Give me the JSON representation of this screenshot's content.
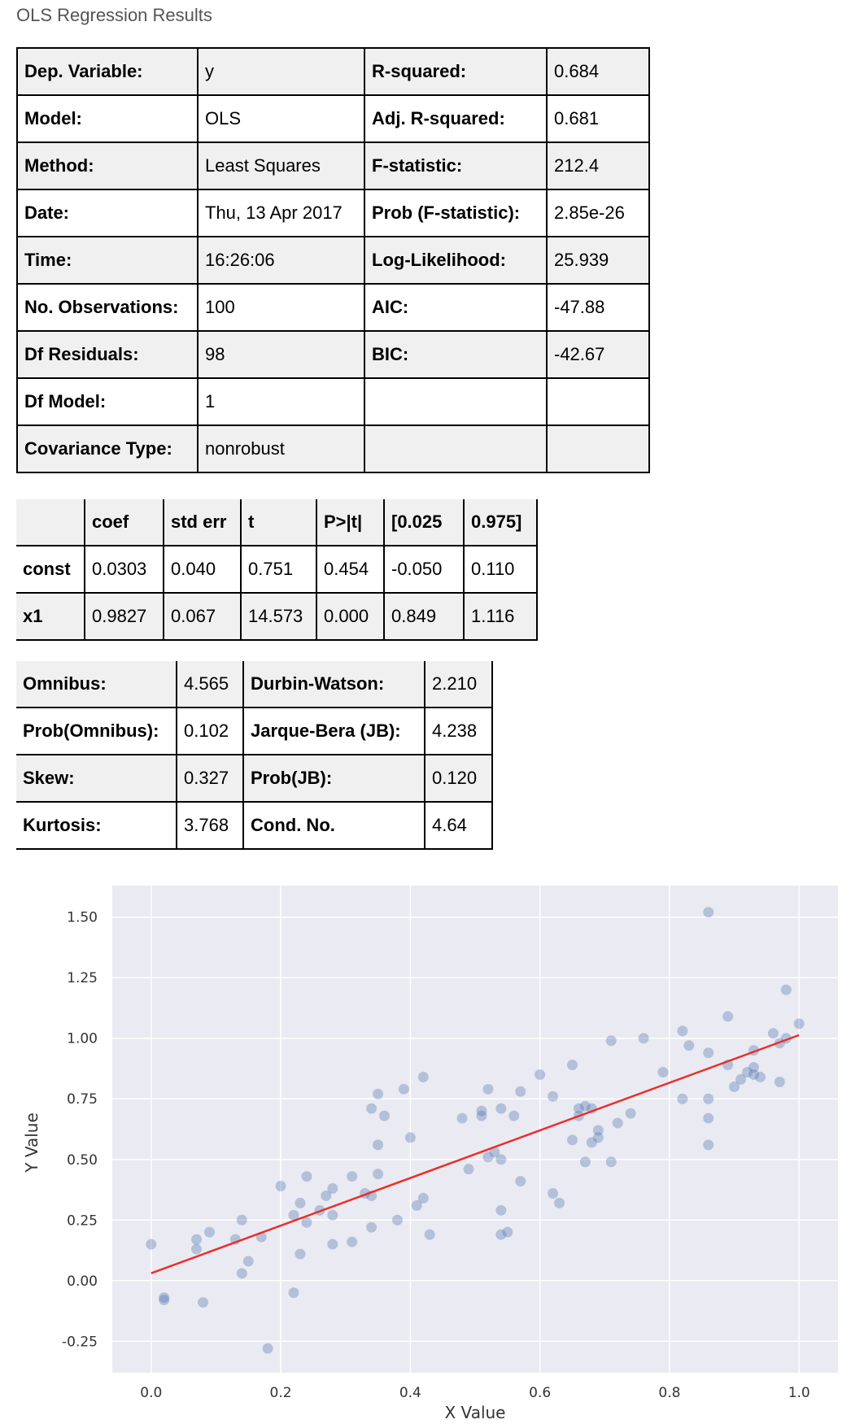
{
  "caption": "OLS Regression Results",
  "summary": {
    "rows": [
      [
        "Dep. Variable:",
        "y",
        "R-squared:",
        "0.684"
      ],
      [
        "Model:",
        "OLS",
        "Adj. R-squared:",
        "0.681"
      ],
      [
        "Method:",
        "Least Squares",
        "F-statistic:",
        "212.4"
      ],
      [
        "Date:",
        "Thu, 13 Apr 2017",
        "Prob (F-statistic):",
        "2.85e-26"
      ],
      [
        "Time:",
        "16:26:06",
        "Log-Likelihood:",
        "25.939"
      ],
      [
        "No. Observations:",
        "100",
        "AIC:",
        "-47.88"
      ],
      [
        "Df Residuals:",
        "98",
        "BIC:",
        "-42.67"
      ],
      [
        "Df Model:",
        "1",
        "",
        ""
      ],
      [
        "Covariance Type:",
        "nonrobust",
        "",
        ""
      ]
    ]
  },
  "coef_table": {
    "headers": [
      "",
      "coef",
      "std err",
      "t",
      "P>|t|",
      "[0.025",
      "0.975]"
    ],
    "rows": [
      [
        "const",
        "0.0303",
        "0.040",
        "0.751",
        "0.454",
        "-0.050",
        "0.110"
      ],
      [
        "x1",
        "0.9827",
        "0.067",
        "14.573",
        "0.000",
        "0.849",
        "1.116"
      ]
    ]
  },
  "diagnostics": {
    "rows": [
      [
        "Omnibus:",
        "4.565",
        "Durbin-Watson:",
        "2.210"
      ],
      [
        "Prob(Omnibus):",
        "0.102",
        "Jarque-Bera (JB):",
        "4.238"
      ],
      [
        "Skew:",
        "0.327",
        "Prob(JB):",
        "0.120"
      ],
      [
        "Kurtosis:",
        "3.768",
        "Cond. No.",
        "4.64"
      ]
    ]
  },
  "chart_data": {
    "type": "scatter",
    "title": "",
    "xlabel": "X Value",
    "ylabel": "Y Value",
    "xlim": [
      -0.06,
      1.06
    ],
    "ylim": [
      -0.38,
      1.63
    ],
    "xticks": [
      "0.0",
      "0.2",
      "0.4",
      "0.6",
      "0.8",
      "1.0"
    ],
    "yticks": [
      "-0.25",
      "0.00",
      "0.25",
      "0.50",
      "0.75",
      "1.00",
      "1.25",
      "1.50"
    ],
    "grid": true,
    "point_color": "#4c72b0",
    "line_color": "#e8302a",
    "points": [
      [
        0.0,
        0.15
      ],
      [
        0.02,
        -0.07
      ],
      [
        0.02,
        -0.08
      ],
      [
        0.07,
        0.13
      ],
      [
        0.07,
        0.17
      ],
      [
        0.08,
        -0.09
      ],
      [
        0.09,
        0.2
      ],
      [
        0.13,
        0.17
      ],
      [
        0.14,
        0.03
      ],
      [
        0.14,
        0.25
      ],
      [
        0.15,
        0.08
      ],
      [
        0.17,
        0.18
      ],
      [
        0.18,
        -0.28
      ],
      [
        0.2,
        0.39
      ],
      [
        0.22,
        0.27
      ],
      [
        0.22,
        -0.05
      ],
      [
        0.23,
        0.32
      ],
      [
        0.23,
        0.11
      ],
      [
        0.24,
        0.24
      ],
      [
        0.24,
        0.43
      ],
      [
        0.26,
        0.29
      ],
      [
        0.27,
        0.35
      ],
      [
        0.28,
        0.38
      ],
      [
        0.28,
        0.15
      ],
      [
        0.28,
        0.27
      ],
      [
        0.31,
        0.43
      ],
      [
        0.31,
        0.16
      ],
      [
        0.33,
        0.36
      ],
      [
        0.34,
        0.22
      ],
      [
        0.34,
        0.71
      ],
      [
        0.34,
        0.35
      ],
      [
        0.35,
        0.77
      ],
      [
        0.35,
        0.56
      ],
      [
        0.35,
        0.44
      ],
      [
        0.36,
        0.68
      ],
      [
        0.38,
        0.25
      ],
      [
        0.39,
        0.79
      ],
      [
        0.4,
        0.59
      ],
      [
        0.41,
        0.31
      ],
      [
        0.42,
        0.84
      ],
      [
        0.42,
        0.34
      ],
      [
        0.43,
        0.19
      ],
      [
        0.48,
        0.67
      ],
      [
        0.49,
        0.46
      ],
      [
        0.51,
        0.7
      ],
      [
        0.51,
        0.68
      ],
      [
        0.52,
        0.79
      ],
      [
        0.52,
        0.51
      ],
      [
        0.53,
        0.53
      ],
      [
        0.54,
        0.71
      ],
      [
        0.54,
        0.5
      ],
      [
        0.54,
        0.29
      ],
      [
        0.54,
        0.19
      ],
      [
        0.55,
        0.2
      ],
      [
        0.56,
        0.68
      ],
      [
        0.57,
        0.41
      ],
      [
        0.57,
        0.78
      ],
      [
        0.6,
        0.85
      ],
      [
        0.62,
        0.76
      ],
      [
        0.62,
        0.36
      ],
      [
        0.63,
        0.32
      ],
      [
        0.65,
        0.89
      ],
      [
        0.65,
        0.58
      ],
      [
        0.66,
        0.68
      ],
      [
        0.66,
        0.71
      ],
      [
        0.67,
        0.72
      ],
      [
        0.67,
        0.49
      ],
      [
        0.68,
        0.57
      ],
      [
        0.68,
        0.71
      ],
      [
        0.69,
        0.62
      ],
      [
        0.69,
        0.59
      ],
      [
        0.71,
        0.99
      ],
      [
        0.71,
        0.49
      ],
      [
        0.72,
        0.65
      ],
      [
        0.74,
        0.69
      ],
      [
        0.76,
        1.0
      ],
      [
        0.79,
        0.86
      ],
      [
        0.82,
        1.03
      ],
      [
        0.82,
        0.75
      ],
      [
        0.83,
        0.97
      ],
      [
        0.86,
        1.52
      ],
      [
        0.86,
        0.94
      ],
      [
        0.86,
        0.75
      ],
      [
        0.86,
        0.67
      ],
      [
        0.86,
        0.56
      ],
      [
        0.89,
        1.09
      ],
      [
        0.89,
        0.89
      ],
      [
        0.9,
        0.8
      ],
      [
        0.91,
        0.83
      ],
      [
        0.92,
        0.86
      ],
      [
        0.93,
        0.85
      ],
      [
        0.93,
        0.88
      ],
      [
        0.93,
        0.95
      ],
      [
        0.94,
        0.84
      ],
      [
        0.96,
        1.02
      ],
      [
        0.97,
        0.82
      ],
      [
        0.97,
        0.98
      ],
      [
        0.98,
        1.2
      ],
      [
        0.98,
        1.0
      ],
      [
        1.0,
        1.06
      ]
    ],
    "fit_line": {
      "intercept": 0.0303,
      "slope": 0.9827
    }
  }
}
